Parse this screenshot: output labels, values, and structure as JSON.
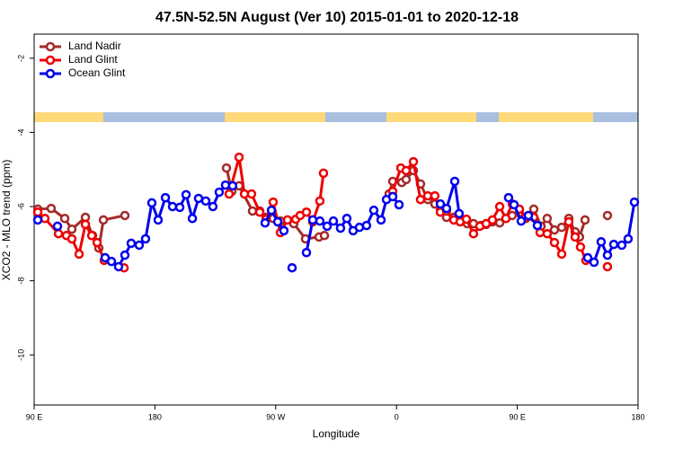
{
  "chart_data": {
    "type": "line",
    "title": "47.5N-52.5N August (Ver 10)   2015-01-01 to 2020-12-18",
    "x_label": "Longitude",
    "y_label": "XCO2 - MLO trend (ppm)",
    "xlim": [
      90,
      540
    ],
    "xticks": [
      {
        "value": 90,
        "label": "90 E"
      },
      180,
      {
        "value": 270,
        "label": "90 W"
      },
      {
        "value": 360,
        "label": "0"
      },
      {
        "value": 450,
        "label": "90 E"
      },
      {
        "value": 540,
        "label": "180"
      }
    ],
    "ylim": [
      -11.35,
      -1.35
    ],
    "yticks": [
      -2,
      -4,
      -6,
      -8,
      -10
    ],
    "legend": "upper left",
    "grid": false,
    "series": [
      {
        "name": "Land Nadir",
        "color": "#a52a2a",
        "x": [
          92.7,
          102.7,
          112.8,
          118.1,
          128.2,
          133.5,
          138.2,
          141.6,
          157.6,
          null,
          233.3,
          237.3,
          242.7,
          252.7,
          258.1,
          262.8,
          268.1,
          273.5,
          283.5,
          292.2,
          302.3,
          306.3,
          null,
          354.5,
          357.2,
          363.9,
          367.2,
          372.6,
          377.9,
          383.3,
          388.6,
          392.7,
          397.3,
          402.7,
          407.4,
          412.7,
          417.4,
          422.8,
          426.8,
          431.5,
          436.9,
          441.5,
          446.2,
          451.6,
          456.3,
          462.3,
          467.7,
          472.3,
          477.7,
          483.1,
          488.4,
          493.1,
          496.4,
          500.5,
          null,
          517.2
        ],
        "values": [
          -6.07,
          -6.05,
          -6.32,
          -6.61,
          -6.29,
          -6.78,
          -7.12,
          -6.36,
          -6.24,
          null,
          -4.96,
          -5.59,
          -5.44,
          -6.12,
          -6.12,
          -6.29,
          -6.32,
          -6.39,
          -6.46,
          -6.87,
          -6.82,
          -6.78,
          null,
          -5.66,
          -5.32,
          -5.35,
          -5.27,
          -5.03,
          -5.39,
          -5.81,
          -5.93,
          -6.05,
          -6.29,
          -6.29,
          -6.34,
          -6.46,
          -6.46,
          -6.51,
          -6.48,
          -6.41,
          -6.44,
          -6.32,
          -6.24,
          -6.17,
          -6.32,
          -6.07,
          -6.53,
          -6.32,
          -6.63,
          -6.56,
          -6.32,
          -6.68,
          -6.82,
          -6.36,
          null,
          -6.24
        ]
      },
      {
        "name": "Land Glint",
        "color": "#ee0000",
        "x": [
          92.7,
          98.0,
          108.1,
          114.1,
          118.1,
          123.5,
          128.2,
          132.9,
          136.9,
          142.2,
          null,
          157.0,
          null,
          235.3,
          242.7,
          246.7,
          252.0,
          258.1,
          262.8,
          268.1,
          273.5,
          278.8,
          284.9,
          288.2,
          292.9,
          297.6,
          302.9,
          305.6,
          null,
          357.2,
          363.2,
          367.2,
          372.6,
          377.9,
          383.3,
          388.6,
          392.7,
          397.3,
          402.7,
          407.4,
          412.1,
          417.4,
          422.1,
          426.8,
          431.5,
          436.9,
          441.5,
          446.2,
          451.6,
          456.3,
          462.3,
          467.0,
          472.3,
          477.7,
          483.1,
          488.4,
          493.1,
          497.1,
          501.1,
          null,
          517.2
        ],
        "values": [
          -6.15,
          -6.32,
          -6.73,
          -6.78,
          -6.87,
          -7.28,
          -6.48,
          -6.78,
          -6.97,
          -7.45,
          null,
          -7.65,
          null,
          -5.66,
          -4.67,
          -5.66,
          -5.66,
          -6.15,
          -6.34,
          -5.88,
          -6.7,
          -6.36,
          -6.34,
          -6.24,
          -6.15,
          -6.41,
          -5.85,
          -5.1,
          null,
          -5.59,
          -4.96,
          -5.03,
          -4.79,
          -5.81,
          -5.71,
          -5.71,
          -6.15,
          -6.12,
          -6.36,
          -6.41,
          -6.34,
          -6.73,
          -6.53,
          -6.46,
          -6.36,
          -6.0,
          -6.32,
          -5.93,
          -6.07,
          -6.29,
          -6.29,
          -6.7,
          -6.73,
          -6.97,
          -7.28,
          -6.41,
          -6.82,
          -7.09,
          -7.45,
          null,
          -7.62
        ]
      },
      {
        "name": "Ocean Glint",
        "color": "#0000ee",
        "x": [
          92.7,
          null,
          107.4,
          null,
          142.9,
          147.6,
          152.9,
          157.6,
          162.3,
          168.3,
          173.0,
          177.7,
          182.4,
          187.8,
          193.1,
          198.5,
          203.2,
          207.9,
          212.5,
          217.9,
          223.2,
          227.9,
          232.6,
          237.9,
          null,
          262.1,
          266.8,
          271.5,
          276.1,
          null,
          282.2,
          null,
          292.9,
          297.6,
          302.9,
          308.3,
          313.0,
          318.3,
          323.0,
          327.7,
          332.4,
          337.7,
          343.1,
          348.5,
          352.5,
          357.2,
          361.9,
          null,
          392.7,
          397.3,
          403.4,
          406.7,
          null,
          443.5,
          447.6,
          452.9,
          458.3,
          465.0,
          null,
          502.5,
          507.2,
          512.5,
          517.2,
          521.9,
          527.9,
          532.6,
          537.3
        ],
        "values": [
          -6.36,
          null,
          -6.53,
          null,
          -7.38,
          -7.48,
          -7.62,
          -7.31,
          -6.99,
          -7.04,
          -6.87,
          -5.9,
          -6.36,
          -5.76,
          -6.0,
          -6.02,
          -5.68,
          -6.32,
          -5.78,
          -5.85,
          -6.0,
          -5.61,
          -5.42,
          -5.44,
          null,
          -6.44,
          -6.1,
          -6.41,
          -6.65,
          null,
          -7.65,
          null,
          -7.24,
          -6.36,
          -6.39,
          -6.53,
          -6.39,
          -6.58,
          -6.32,
          -6.65,
          -6.56,
          -6.51,
          -6.1,
          -6.36,
          -5.81,
          -5.73,
          -5.95,
          null,
          -5.93,
          -6.05,
          -5.32,
          -6.19,
          null,
          -5.76,
          -5.95,
          -6.39,
          -6.24,
          -6.51,
          null,
          -7.38,
          -7.5,
          -6.95,
          -7.31,
          -7.02,
          -7.04,
          -6.87,
          -5.88
        ]
      }
    ]
  }
}
